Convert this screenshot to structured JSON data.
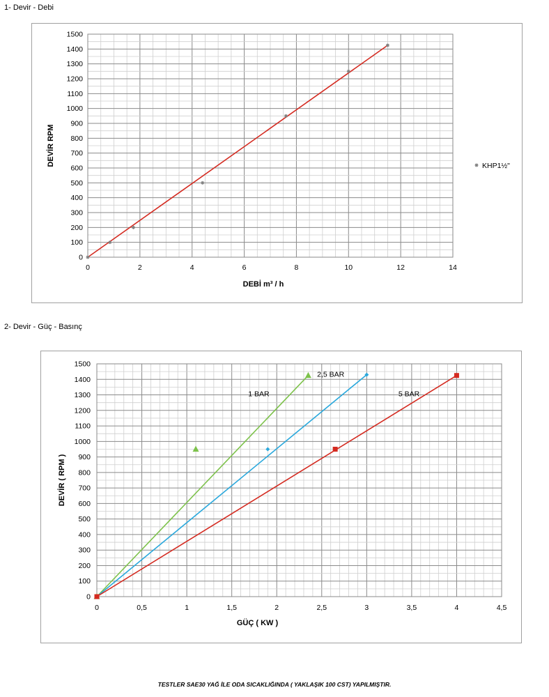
{
  "sections": [
    {
      "title": "1- Devir - Debi"
    },
    {
      "title": "2- Devir - Güç - Basınç"
    }
  ],
  "footer_note": "TESTLER SAE30 YAĞ İLE ODA SICAKLIĞINDA ( YAKLAŞIK 100 CST) YAPILMIŞTIR.",
  "chart_data": [
    {
      "type": "scatter",
      "title": "",
      "xlabel": "DEBİ m³ / h",
      "ylabel": "DEVİR RPM",
      "xlim": [
        0,
        14
      ],
      "ylim": [
        0,
        1500
      ],
      "x_ticks": [
        "0",
        "2",
        "4",
        "6",
        "8",
        "10",
        "12",
        "14"
      ],
      "y_ticks": [
        "0",
        "100",
        "200",
        "300",
        "400",
        "500",
        "600",
        "700",
        "800",
        "900",
        "1000",
        "1100",
        "1200",
        "1300",
        "1400",
        "1500"
      ],
      "grid": true,
      "legend": "right",
      "series": [
        {
          "name": "KHP1½\"",
          "x": [
            0,
            0.85,
            1.75,
            4.4,
            7.6,
            10,
            11.5
          ],
          "y": [
            0,
            100,
            200,
            500,
            950,
            1250,
            1425
          ],
          "marker_color": "#808080"
        }
      ],
      "trendline": {
        "x": [
          0,
          11.5
        ],
        "y": [
          0,
          1425
        ],
        "color": "#d42a20"
      }
    },
    {
      "type": "scatter",
      "title": "",
      "xlabel": "GÜÇ ( KW )",
      "ylabel": "DEVİR ( RPM )",
      "xlim": [
        0,
        4.5
      ],
      "ylim": [
        0,
        1500
      ],
      "x_ticks": [
        "0",
        "0,5",
        "1",
        "1,5",
        "2",
        "2,5",
        "3",
        "3,5",
        "4",
        "4,5"
      ],
      "y_ticks": [
        "0",
        "100",
        "200",
        "300",
        "400",
        "500",
        "600",
        "700",
        "800",
        "900",
        "1000",
        "1100",
        "1200",
        "1300",
        "1400",
        "1500"
      ],
      "grid": true,
      "series": [
        {
          "name": "1 BAR",
          "x": [
            0,
            1.1,
            2.35
          ],
          "y": [
            0,
            950,
            1425
          ],
          "line": {
            "x": [
              0,
              2.35
            ],
            "y": [
              0,
              1425
            ]
          },
          "color": "#7dc24b",
          "marker": "triangle"
        },
        {
          "name": "2,5 BAR",
          "x": [
            0,
            1.9,
            3.0
          ],
          "y": [
            0,
            950,
            1430
          ],
          "line": {
            "x": [
              0,
              3.0
            ],
            "y": [
              0,
              1430
            ]
          },
          "color": "#2aa8dc",
          "marker": "diamond"
        },
        {
          "name": "5 BAR",
          "x": [
            0,
            2.65,
            4.0
          ],
          "y": [
            0,
            950,
            1425
          ],
          "line": {
            "x": [
              0,
              4.0
            ],
            "y": [
              0,
              1425
            ]
          },
          "color": "#d42a20",
          "marker": "square"
        }
      ]
    }
  ]
}
